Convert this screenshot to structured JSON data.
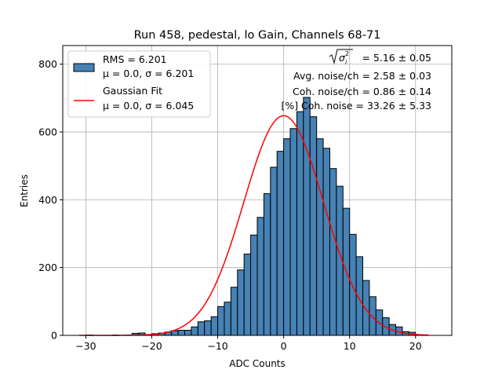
{
  "chart_data": {
    "type": "bar",
    "title": "Run 458, pedestal, lo Gain, Channels 68-71",
    "xlabel": "ADC Counts",
    "ylabel": "Entries",
    "xlim": [
      -33.5,
      25.5
    ],
    "ylim": [
      0,
      855
    ],
    "xticks": [
      -30,
      -20,
      -10,
      0,
      10,
      20
    ],
    "xtick_labels": [
      "−30",
      "−20",
      "−10",
      "0",
      "10",
      "20"
    ],
    "yticks": [
      0,
      200,
      400,
      600,
      800
    ],
    "ytick_labels": [
      "0",
      "200",
      "400",
      "600",
      "800"
    ],
    "grid": true,
    "bin_width": 1,
    "bin_edges_start": -31,
    "counts": [
      0,
      1,
      0,
      0,
      0,
      1,
      0,
      1,
      6,
      7,
      2,
      5,
      7,
      10,
      14,
      15,
      15,
      25,
      40,
      43,
      55,
      85,
      98,
      142,
      193,
      240,
      296,
      348,
      418,
      496,
      543,
      580,
      610,
      660,
      702,
      645,
      580,
      552,
      492,
      440,
      375,
      298,
      232,
      162,
      114,
      75,
      52,
      32,
      25,
      11,
      9,
      2,
      0,
      0
    ],
    "bar_color": "#4682b4",
    "fit": {
      "label": "Gaussian Fit",
      "mu": 0.0,
      "sigma": 6.045,
      "amplitude": 648,
      "range": [
        -31,
        22
      ],
      "color": "#ff0000"
    },
    "legend": {
      "position": "top-left",
      "entries": [
        {
          "line1": "RMS = 6.201",
          "line2": "μ = 0.0, σ = 6.201",
          "kind": "patch"
        },
        {
          "line1": "Gaussian Fit",
          "line2": "μ = 0.0, σ = 6.045",
          "kind": "line"
        }
      ]
    },
    "annotations": [
      {
        "text": "= 5.16 ± 0.05",
        "prefix": "sqrt-sigma-i-squared"
      },
      {
        "text": "Avg. noise/ch = 2.58 ± 0.03"
      },
      {
        "text": "Coh. noise/ch = 0.86 ± 0.14"
      },
      {
        "text": "[%] Coh. noise = 33.26 ± 5.33"
      }
    ]
  }
}
